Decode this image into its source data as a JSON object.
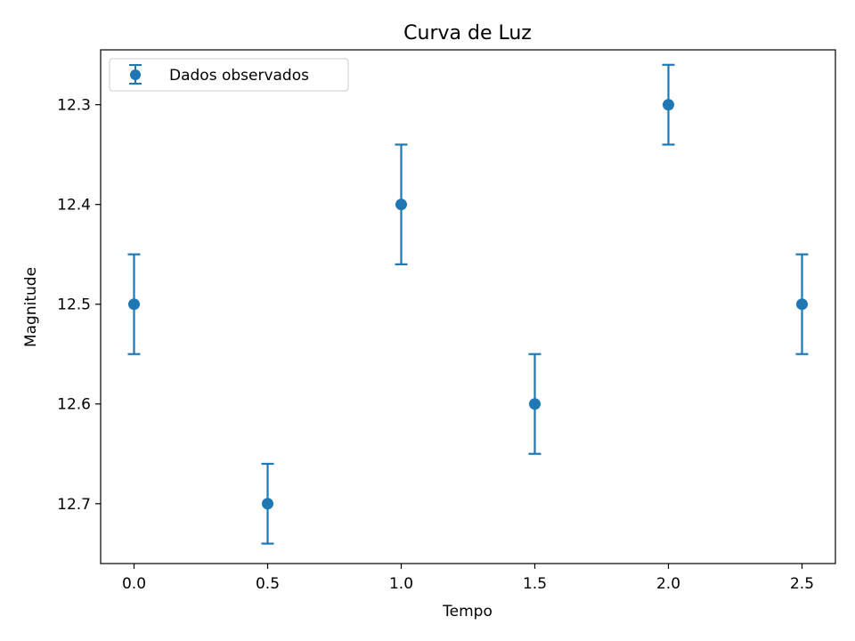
{
  "chart_data": {
    "type": "scatter",
    "title": "Curva de Luz",
    "xlabel": "Tempo",
    "ylabel": "Magnitude",
    "xlim": [
      -0.125,
      2.625
    ],
    "ylim": [
      12.76,
      12.245
    ],
    "y_inverted": true,
    "xticks": [
      0.0,
      0.5,
      1.0,
      1.5,
      2.0,
      2.5
    ],
    "xtick_labels": [
      "0.0",
      "0.5",
      "1.0",
      "1.5",
      "2.0",
      "2.5"
    ],
    "yticks": [
      12.3,
      12.4,
      12.5,
      12.6,
      12.7
    ],
    "ytick_labels": [
      "12.3",
      "12.4",
      "12.5",
      "12.6",
      "12.7"
    ],
    "grid": false,
    "legend_position": "top-left",
    "color": "#1f77b4",
    "series": [
      {
        "name": "Dados observados",
        "x": [
          0.0,
          0.5,
          1.0,
          1.5,
          2.0,
          2.5
        ],
        "y": [
          12.5,
          12.7,
          12.4,
          12.6,
          12.3,
          12.5
        ],
        "yerr": [
          0.05,
          0.04,
          0.06,
          0.05,
          0.04,
          0.05
        ]
      }
    ]
  }
}
